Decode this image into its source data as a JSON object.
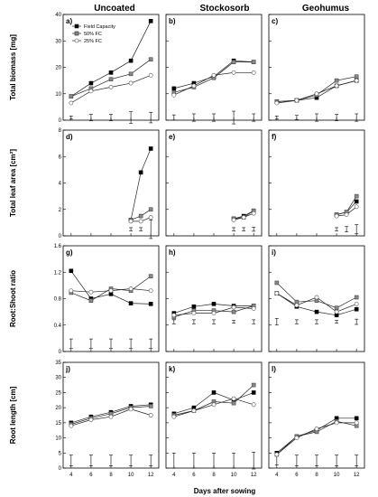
{
  "columns": [
    "Uncoated",
    "Stockosorb",
    "Geohumus"
  ],
  "x_axis_label": "Days after sowing",
  "legend": [
    {
      "label": "Field Capacity",
      "fill": "#000000"
    },
    {
      "label": "50% FC",
      "fill": "#8a8a8a"
    },
    {
      "label": "25% FC",
      "fill": "#ffffff"
    }
  ],
  "chart_data": [
    {
      "type": "line",
      "row": "biomass",
      "col": "Uncoated",
      "panel_label": "a)",
      "ylabel": "Total biomass [mg]",
      "ylim": [
        0,
        40
      ],
      "yticks": [
        0,
        10,
        20,
        30,
        40
      ],
      "x": [
        4,
        6,
        8,
        10,
        12
      ],
      "xticks": [
        4,
        6,
        8,
        10,
        12
      ],
      "series": [
        {
          "name": "Field Capacity",
          "values": [
            9,
            14,
            18,
            22.5,
            37.5
          ]
        },
        {
          "name": "50% FC",
          "values": [
            9,
            12,
            15.5,
            17.5,
            23
          ]
        },
        {
          "name": "25% FC",
          "values": [
            6.5,
            11,
            12.5,
            14,
            17
          ]
        }
      ],
      "lsd": [
        {
          "x": 4,
          "y": 1,
          "half": 0.6
        },
        {
          "x": 6,
          "y": 1,
          "half": 1.2
        },
        {
          "x": 8,
          "y": 1,
          "half": 1.2
        },
        {
          "x": 10,
          "y": 1,
          "half": 2.2
        },
        {
          "x": 12,
          "y": 1,
          "half": 2
        }
      ]
    },
    {
      "type": "line",
      "row": "biomass",
      "col": "Stockosorb",
      "panel_label": "b)",
      "ylabel": "",
      "ylim": [
        0,
        40
      ],
      "yticks": [
        0,
        10,
        20,
        30,
        40
      ],
      "x": [
        4,
        6,
        8,
        10,
        12
      ],
      "xticks": [
        4,
        6,
        8,
        10,
        12
      ],
      "series": [
        {
          "name": "Field Capacity",
          "values": [
            12,
            14,
            16.5,
            22.5,
            22
          ]
        },
        {
          "name": "50% FC",
          "values": [
            10.5,
            12.5,
            16,
            22,
            22
          ]
        },
        {
          "name": "25% FC",
          "values": [
            9.5,
            13,
            17,
            18,
            18
          ]
        }
      ],
      "lsd": [
        {
          "x": 4,
          "y": 1,
          "half": 1
        },
        {
          "x": 6,
          "y": 1,
          "half": 1.4
        },
        {
          "x": 8,
          "y": 1,
          "half": 1.4
        },
        {
          "x": 10,
          "y": 1,
          "half": 2.4
        },
        {
          "x": 12,
          "y": 1,
          "half": 1.4
        }
      ]
    },
    {
      "type": "line",
      "row": "biomass",
      "col": "Geohumus",
      "panel_label": "c)",
      "ylabel": "",
      "ylim": [
        0,
        40
      ],
      "yticks": [
        0,
        10,
        20,
        30,
        40
      ],
      "x": [
        4,
        6,
        8,
        10,
        12
      ],
      "xticks": [
        4,
        6,
        8,
        10,
        12
      ],
      "series": [
        {
          "name": "Field Capacity",
          "values": [
            7,
            7.5,
            8.5,
            13,
            15
          ]
        },
        {
          "name": "50% FC",
          "values": [
            7,
            7.5,
            9.5,
            15,
            16.5
          ]
        },
        {
          "name": "25% FC",
          "values": [
            6.5,
            7.5,
            10,
            13,
            15
          ]
        }
      ],
      "lsd": [
        {
          "x": 4,
          "y": 1,
          "half": 0.6
        },
        {
          "x": 6,
          "y": 1,
          "half": 0.8
        },
        {
          "x": 8,
          "y": 1,
          "half": 1.4
        },
        {
          "x": 10,
          "y": 1,
          "half": 1.2
        },
        {
          "x": 12,
          "y": 1,
          "half": 1.4
        }
      ]
    },
    {
      "type": "line",
      "row": "leafarea",
      "col": "Uncoated",
      "panel_label": "d)",
      "ylabel": "Total leaf area [cm²]",
      "ylim": [
        0,
        8
      ],
      "yticks": [
        0,
        2,
        4,
        6,
        8
      ],
      "x": [
        10,
        11,
        12
      ],
      "xticks": [
        4,
        6,
        8,
        10,
        12
      ],
      "series": [
        {
          "name": "Field Capacity",
          "values": [
            1.2,
            4.8,
            6.6
          ]
        },
        {
          "name": "50% FC",
          "values": [
            1.2,
            1.5,
            2
          ]
        },
        {
          "name": "25% FC",
          "values": [
            1.1,
            1.1,
            1.4
          ]
        }
      ],
      "lsd": [
        {
          "x": 10,
          "y": 0.5,
          "half": 0.12
        },
        {
          "x": 11,
          "y": 0.5,
          "half": 0.12
        },
        {
          "x": 12,
          "y": 0.5,
          "half": 0.7
        }
      ]
    },
    {
      "type": "line",
      "row": "leafarea",
      "col": "Stockosorb",
      "panel_label": "e)",
      "ylabel": "",
      "ylim": [
        0,
        8
      ],
      "yticks": [
        0,
        2,
        4,
        6,
        8
      ],
      "x": [
        10,
        11,
        12
      ],
      "xticks": [
        4,
        6,
        8,
        10,
        12
      ],
      "series": [
        {
          "name": "Field Capacity",
          "values": [
            1.3,
            1.5,
            1.9
          ]
        },
        {
          "name": "50% FC",
          "values": [
            1.3,
            1.4,
            1.9
          ]
        },
        {
          "name": "25% FC",
          "values": [
            1.2,
            1.4,
            1.7
          ]
        }
      ],
      "lsd": [
        {
          "x": 10,
          "y": 0.5,
          "half": 0.12
        },
        {
          "x": 11,
          "y": 0.5,
          "half": 0.12
        },
        {
          "x": 12,
          "y": 0.5,
          "half": 0.15
        }
      ]
    },
    {
      "type": "line",
      "row": "leafarea",
      "col": "Geohumus",
      "panel_label": "f)",
      "ylabel": "",
      "ylim": [
        0,
        8
      ],
      "yticks": [
        0,
        2,
        4,
        6,
        8
      ],
      "x": [
        10,
        11,
        12
      ],
      "xticks": [
        4,
        6,
        8,
        10,
        12
      ],
      "series": [
        {
          "name": "Field Capacity",
          "values": [
            1.6,
            1.8,
            2.6
          ]
        },
        {
          "name": "50% FC",
          "values": [
            1.6,
            1.8,
            3
          ]
        },
        {
          "name": "25% FC",
          "values": [
            1.5,
            1.6,
            2.2
          ]
        }
      ],
      "lsd": [
        {
          "x": 10,
          "y": 0.5,
          "half": 0.12
        },
        {
          "x": 11,
          "y": 0.5,
          "half": 0.2
        },
        {
          "x": 12,
          "y": 0.5,
          "half": 0.35
        }
      ]
    },
    {
      "type": "line",
      "row": "rootshoot",
      "col": "Uncoated",
      "panel_label": "g)",
      "ylabel": "Root:Shoot ratio",
      "ylim": [
        0,
        1.6
      ],
      "yticks": [
        0,
        0.4,
        0.8,
        1.2,
        1.6
      ],
      "x": [
        4,
        6,
        8,
        10,
        12
      ],
      "xticks": [
        4,
        6,
        8,
        10,
        12
      ],
      "series": [
        {
          "name": "Field Capacity",
          "values": [
            1.22,
            0.8,
            0.87,
            0.73,
            0.72
          ]
        },
        {
          "name": "50% FC",
          "values": [
            0.89,
            0.77,
            0.95,
            0.92,
            1.14
          ]
        },
        {
          "name": "25% FC",
          "values": [
            0.92,
            0.9,
            0.92,
            0.95,
            0.92
          ]
        }
      ],
      "lsd": [
        {
          "x": 4,
          "y": 0.12,
          "half": 0.07
        },
        {
          "x": 6,
          "y": 0.12,
          "half": 0.07
        },
        {
          "x": 8,
          "y": 0.12,
          "half": 0.07
        },
        {
          "x": 10,
          "y": 0.12,
          "half": 0.07
        },
        {
          "x": 12,
          "y": 0.12,
          "half": 0.07
        }
      ]
    },
    {
      "type": "line",
      "row": "rootshoot",
      "col": "Stockosorb",
      "panel_label": "h)",
      "ylabel": "",
      "ylim": [
        0,
        1.6
      ],
      "yticks": [
        0,
        0.4,
        0.8,
        1.2,
        1.6
      ],
      "x": [
        4,
        6,
        8,
        10,
        12
      ],
      "xticks": [
        4,
        6,
        8,
        10,
        12
      ],
      "series": [
        {
          "name": "Field Capacity",
          "values": [
            0.58,
            0.68,
            0.72,
            0.69,
            0.69
          ]
        },
        {
          "name": "50% FC",
          "values": [
            0.52,
            0.62,
            0.62,
            0.6,
            0.69
          ]
        },
        {
          "name": "25% FC",
          "values": [
            0.55,
            0.58,
            0.58,
            0.67,
            0.65
          ]
        }
      ],
      "lsd": [
        {
          "x": 4,
          "y": 0.45,
          "half": 0.03
        },
        {
          "x": 6,
          "y": 0.45,
          "half": 0.03
        },
        {
          "x": 8,
          "y": 0.45,
          "half": 0.03
        },
        {
          "x": 10,
          "y": 0.45,
          "half": 0.02
        },
        {
          "x": 12,
          "y": 0.45,
          "half": 0.03
        }
      ]
    },
    {
      "type": "line",
      "row": "rootshoot",
      "col": "Geohumus",
      "panel_label": "i)",
      "ylabel": "",
      "ylim": [
        0,
        1.6
      ],
      "yticks": [
        0,
        0.4,
        0.8,
        1.2,
        1.6
      ],
      "x": [
        4,
        6,
        8,
        10,
        12
      ],
      "xticks": [
        4,
        6,
        8,
        10,
        12
      ],
      "series": [
        {
          "name": "Field Capacity",
          "values": [
            0.88,
            0.68,
            0.6,
            0.55,
            0.64
          ]
        },
        {
          "name": "50% FC",
          "values": [
            1.04,
            0.75,
            0.77,
            0.66,
            0.82
          ]
        },
        {
          "name": "25% FC",
          "values": [
            0.88,
            0.7,
            0.82,
            0.6,
            0.72
          ]
        }
      ],
      "lsd": [
        {
          "x": 4,
          "y": 0.45,
          "half": 0.05
        },
        {
          "x": 6,
          "y": 0.45,
          "half": 0.03
        },
        {
          "x": 8,
          "y": 0.45,
          "half": 0.03
        },
        {
          "x": 10,
          "y": 0.45,
          "half": 0.02
        },
        {
          "x": 12,
          "y": 0.45,
          "half": 0.04
        }
      ]
    },
    {
      "type": "line",
      "row": "rootlength",
      "col": "Uncoated",
      "panel_label": "j)",
      "ylabel": "Root length [cm]",
      "ylim": [
        0,
        35
      ],
      "yticks": [
        0,
        5,
        10,
        15,
        20,
        25,
        30,
        35
      ],
      "x": [
        4,
        6,
        8,
        10,
        12
      ],
      "xticks": [
        4,
        6,
        8,
        10,
        12
      ],
      "series": [
        {
          "name": "Field Capacity",
          "values": [
            15,
            17,
            18.5,
            20.5,
            21
          ]
        },
        {
          "name": "50% FC",
          "values": [
            14.5,
            16.5,
            18,
            20,
            20.5
          ]
        },
        {
          "name": "25% FC",
          "values": [
            14,
            16,
            17,
            19.5,
            17.5
          ]
        }
      ],
      "lsd": [
        {
          "x": 4,
          "y": 2.5,
          "half": 1.8
        },
        {
          "x": 6,
          "y": 2.5,
          "half": 1.8
        },
        {
          "x": 8,
          "y": 2.5,
          "half": 1.8
        },
        {
          "x": 10,
          "y": 2.5,
          "half": 1.8
        },
        {
          "x": 12,
          "y": 2.5,
          "half": 1.8
        }
      ]
    },
    {
      "type": "line",
      "row": "rootlength",
      "col": "Stockosorb",
      "panel_label": "k)",
      "ylabel": "",
      "ylim": [
        0,
        35
      ],
      "yticks": [
        0,
        5,
        10,
        15,
        20,
        25,
        30,
        35
      ],
      "x": [
        4,
        6,
        8,
        10,
        12
      ],
      "xticks": [
        4,
        6,
        8,
        10,
        12
      ],
      "series": [
        {
          "name": "Field Capacity",
          "values": [
            18,
            20,
            25,
            22.5,
            25
          ]
        },
        {
          "name": "50% FC",
          "values": [
            17.5,
            19,
            22,
            21.5,
            27.5
          ]
        },
        {
          "name": "25% FC",
          "values": [
            17,
            19,
            21,
            23,
            21
          ]
        }
      ],
      "lsd": [
        {
          "x": 4,
          "y": 2.5,
          "half": 2.5
        },
        {
          "x": 6,
          "y": 2.5,
          "half": 2.5
        },
        {
          "x": 8,
          "y": 2.5,
          "half": 2.5
        },
        {
          "x": 10,
          "y": 2.5,
          "half": 2.5
        },
        {
          "x": 12,
          "y": 2.5,
          "half": 2.8
        }
      ]
    },
    {
      "type": "line",
      "row": "rootlength",
      "col": "Geohumus",
      "panel_label": "l)",
      "ylabel": "",
      "ylim": [
        0,
        35
      ],
      "yticks": [
        0,
        5,
        10,
        15,
        20,
        25,
        30,
        35
      ],
      "x": [
        4,
        6,
        8,
        10,
        12
      ],
      "xticks": [
        4,
        6,
        8,
        10,
        12
      ],
      "series": [
        {
          "name": "Field Capacity",
          "values": [
            5,
            10.5,
            12.5,
            16.5,
            16.5
          ]
        },
        {
          "name": "50% FC",
          "values": [
            4.5,
            10.5,
            12,
            15.5,
            14
          ]
        },
        {
          "name": "25% FC",
          "values": [
            4.5,
            10,
            13,
            15,
            15
          ]
        }
      ],
      "lsd": [
        {
          "x": 4,
          "y": 2.5,
          "half": 1.5
        },
        {
          "x": 6,
          "y": 2.5,
          "half": 1.8
        },
        {
          "x": 8,
          "y": 2.5,
          "half": 1.8
        },
        {
          "x": 10,
          "y": 2.5,
          "half": 1.8
        },
        {
          "x": 12,
          "y": 2.5,
          "half": 1.8
        }
      ]
    }
  ]
}
